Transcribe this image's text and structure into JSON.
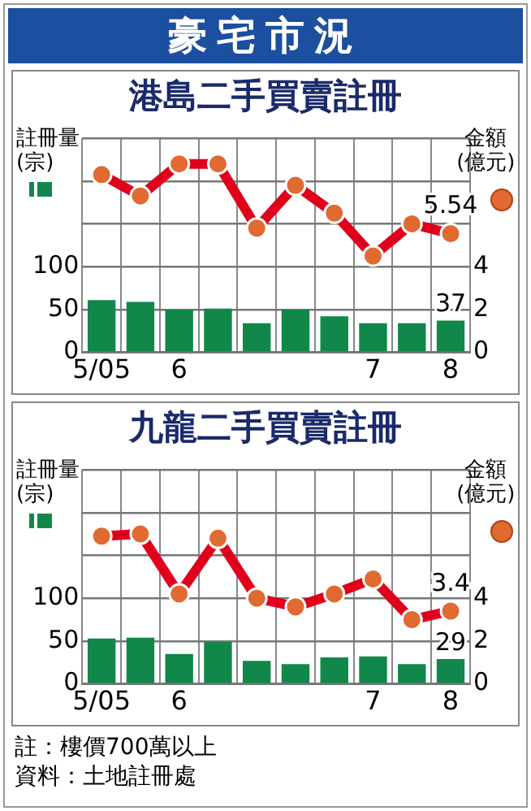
{
  "chart_data": [
    {
      "type": "bar",
      "title": "港島二手買賣註冊",
      "ylabel": "註冊量(宗)",
      "y2label": "金額(億元)",
      "annotations": [
        "豪宅市況"
      ],
      "categories": [
        "5/05",
        null,
        "6",
        null,
        null,
        null,
        null,
        "7",
        null,
        "8"
      ],
      "series": [
        {
          "color": "#12874a",
          "values": [
            61,
            59,
            50,
            51,
            34,
            50,
            42,
            34,
            34,
            37
          ],
          "value_labels": [
            null,
            null,
            null,
            null,
            null,
            null,
            null,
            null,
            null,
            "37"
          ]
        },
        {
          "type": "line",
          "axis": "y2",
          "color": "#e0001b",
          "values": [
            8.3,
            7.3,
            8.8,
            8.8,
            5.8,
            7.8,
            6.5,
            4.5,
            6.0,
            5.54
          ],
          "value_labels": [
            null,
            null,
            null,
            null,
            null,
            null,
            null,
            null,
            null,
            "5.54"
          ]
        }
      ],
      "ylim": [
        0,
        250
      ],
      "yticks": [
        0,
        50,
        100,
        {
          "value": 150,
          "label": null
        },
        {
          "value": 200,
          "label": null
        },
        {
          "value": 250,
          "label": null
        }
      ],
      "y2lim": [
        0,
        10
      ],
      "y2ticks": [
        0,
        2,
        4
      ],
      "grid": true,
      "legend": false,
      "marker": "circle"
    },
    {
      "type": "bar",
      "title": "九龍二手買賣註冊",
      "ylabel": "註冊量(宗)",
      "y2label": "金額(億元)",
      "annotations": [
        "註：樓價700萬以上",
        "資料：土地註冊處"
      ],
      "categories": [
        "5/05",
        null,
        "6",
        null,
        null,
        null,
        null,
        "7",
        null,
        "8"
      ],
      "series": [
        {
          "color": "#12874a",
          "values": [
            53,
            54,
            35,
            49,
            27,
            23,
            31,
            32,
            23,
            29
          ],
          "value_labels": [
            null,
            null,
            null,
            null,
            null,
            null,
            null,
            null,
            null,
            "29"
          ]
        },
        {
          "type": "line",
          "axis": "y2",
          "color": "#e0001b",
          "values": [
            6.9,
            7.0,
            4.2,
            6.8,
            4.0,
            3.6,
            4.2,
            4.9,
            3.0,
            3.4
          ],
          "value_labels": [
            null,
            null,
            null,
            null,
            null,
            null,
            null,
            null,
            null,
            "3.4"
          ]
        }
      ],
      "ylim": [
        0,
        250
      ],
      "yticks": [
        0,
        50,
        100,
        {
          "value": 150,
          "label": null
        },
        {
          "value": 200,
          "label": null
        },
        {
          "value": 250,
          "label": null
        }
      ],
      "y2lim": [
        0,
        10
      ],
      "y2ticks": [
        0,
        2,
        4
      ],
      "grid": true,
      "legend": false,
      "marker": "circle"
    }
  ]
}
